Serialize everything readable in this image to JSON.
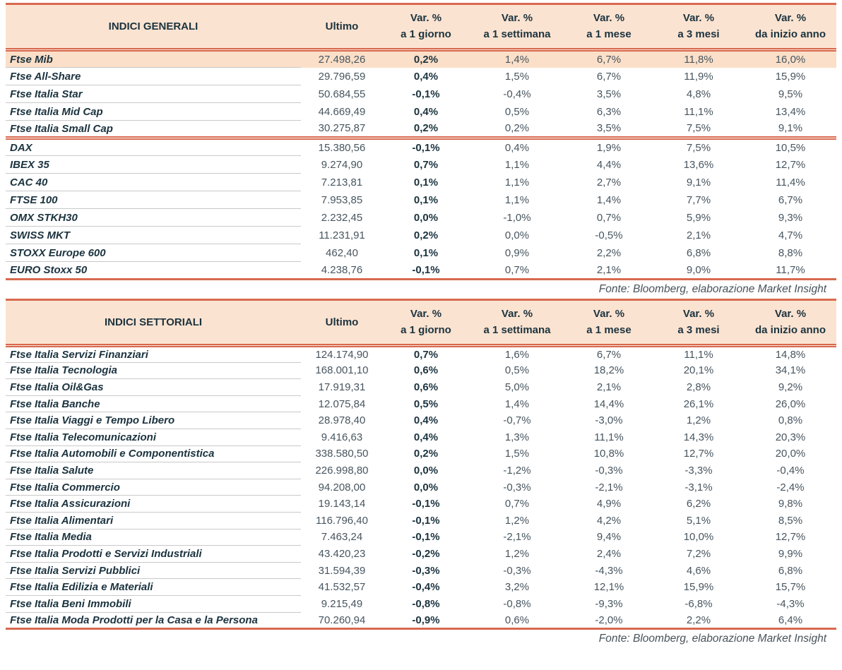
{
  "colors": {
    "accent-line": "#d7694f",
    "header-bg": "#fbe3d1",
    "highlight-bg": "#fbdfc8",
    "ink": "#1b333f",
    "num": "#47555f",
    "separator": "#c9c9c9",
    "fonte": "#47525a"
  },
  "tables": [
    {
      "title": "INDICI GENERALI",
      "ultimo_label": "Ultimo",
      "var_cols": [
        {
          "top": "Var. %",
          "bottom": "a 1 giorno"
        },
        {
          "top": "Var. %",
          "bottom": "a 1 settimana"
        },
        {
          "top": "Var. %",
          "bottom": "a 1 mese"
        },
        {
          "top": "Var. %",
          "bottom": "a 3 mesi"
        },
        {
          "top": "Var. %",
          "bottom": "da inizio anno"
        }
      ],
      "groups": [
        [
          {
            "name": "Ftse Mib",
            "ultimo": "27.498,26",
            "d1": "0,2%",
            "w1": "1,4%",
            "m1": "6,7%",
            "m3": "11,8%",
            "ytd": "16,0%",
            "highlight": true
          },
          {
            "name": "Ftse All-Share",
            "ultimo": "29.796,59",
            "d1": "0,4%",
            "w1": "1,5%",
            "m1": "6,7%",
            "m3": "11,9%",
            "ytd": "15,9%"
          },
          {
            "name": "Ftse Italia Star",
            "ultimo": "50.684,55",
            "d1": "-0,1%",
            "w1": "-0,4%",
            "m1": "3,5%",
            "m3": "4,8%",
            "ytd": "9,5%"
          },
          {
            "name": "Ftse Italia Mid Cap",
            "ultimo": "44.669,49",
            "d1": "0,4%",
            "w1": "0,5%",
            "m1": "6,3%",
            "m3": "11,1%",
            "ytd": "13,4%"
          },
          {
            "name": "Ftse Italia Small Cap",
            "ultimo": "30.275,87",
            "d1": "0,2%",
            "w1": "0,2%",
            "m1": "3,5%",
            "m3": "7,5%",
            "ytd": "9,1%"
          }
        ],
        [
          {
            "name": "DAX",
            "ultimo": "15.380,56",
            "d1": "-0,1%",
            "w1": "0,4%",
            "m1": "1,9%",
            "m3": "7,5%",
            "ytd": "10,5%"
          },
          {
            "name": "IBEX 35",
            "ultimo": "9.274,90",
            "d1": "0,7%",
            "w1": "1,1%",
            "m1": "4,4%",
            "m3": "13,6%",
            "ytd": "12,7%"
          },
          {
            "name": "CAC 40",
            "ultimo": "7.213,81",
            "d1": "0,1%",
            "w1": "1,1%",
            "m1": "2,7%",
            "m3": "9,1%",
            "ytd": "11,4%"
          },
          {
            "name": "FTSE 100",
            "ultimo": "7.953,85",
            "d1": "0,1%",
            "w1": "1,1%",
            "m1": "1,4%",
            "m3": "7,7%",
            "ytd": "6,7%"
          },
          {
            "name": "OMX STKH30",
            "ultimo": "2.232,45",
            "d1": "0,0%",
            "w1": "-1,0%",
            "m1": "0,7%",
            "m3": "5,9%",
            "ytd": "9,3%"
          },
          {
            "name": "SWISS MKT",
            "ultimo": "11.231,91",
            "d1": "0,2%",
            "w1": "0,0%",
            "m1": "-0,5%",
            "m3": "2,1%",
            "ytd": "4,7%"
          },
          {
            "name": "STOXX Europe 600",
            "ultimo": "462,40",
            "d1": "0,1%",
            "w1": "0,9%",
            "m1": "2,2%",
            "m3": "6,8%",
            "ytd": "8,8%"
          },
          {
            "name": "EURO Stoxx 50",
            "ultimo": "4.238,76",
            "d1": "-0,1%",
            "w1": "0,7%",
            "m1": "2,1%",
            "m3": "9,0%",
            "ytd": "11,7%"
          }
        ]
      ],
      "fonte": "Fonte: Bloomberg, elaborazione Market Insight"
    },
    {
      "title": "INDICI SETTORIALI",
      "ultimo_label": "Ultimo",
      "var_cols": [
        {
          "top": "Var. %",
          "bottom": "a 1 giorno"
        },
        {
          "top": "Var. %",
          "bottom": "a 1 settimana"
        },
        {
          "top": "Var. %",
          "bottom": "a 1 mese"
        },
        {
          "top": "Var. %",
          "bottom": "a 3 mesi"
        },
        {
          "top": "Var. %",
          "bottom": "da inizio anno"
        }
      ],
      "groups": [
        [
          {
            "name": "Ftse Italia Servizi Finanziari",
            "ultimo": "124.174,90",
            "d1": "0,7%",
            "w1": "1,6%",
            "m1": "6,7%",
            "m3": "11,1%",
            "ytd": "14,8%"
          },
          {
            "name": "Ftse Italia Tecnologia",
            "ultimo": "168.001,10",
            "d1": "0,6%",
            "w1": "0,5%",
            "m1": "18,2%",
            "m3": "20,1%",
            "ytd": "34,1%"
          },
          {
            "name": "Ftse Italia Oil&Gas",
            "ultimo": "17.919,31",
            "d1": "0,6%",
            "w1": "5,0%",
            "m1": "2,1%",
            "m3": "2,8%",
            "ytd": "9,2%"
          },
          {
            "name": "Ftse Italia Banche",
            "ultimo": "12.075,84",
            "d1": "0,5%",
            "w1": "1,4%",
            "m1": "14,4%",
            "m3": "26,1%",
            "ytd": "26,0%"
          },
          {
            "name": "Ftse Italia Viaggi e Tempo Libero",
            "ultimo": "28.978,40",
            "d1": "0,4%",
            "w1": "-0,7%",
            "m1": "-3,0%",
            "m3": "1,2%",
            "ytd": "0,8%"
          },
          {
            "name": "Ftse Italia Telecomunicazioni",
            "ultimo": "9.416,63",
            "d1": "0,4%",
            "w1": "1,3%",
            "m1": "11,1%",
            "m3": "14,3%",
            "ytd": "20,3%"
          },
          {
            "name": "Ftse Italia Automobili e Componentistica",
            "ultimo": "338.580,50",
            "d1": "0,2%",
            "w1": "1,5%",
            "m1": "10,8%",
            "m3": "12,7%",
            "ytd": "20,0%"
          },
          {
            "name": "Ftse Italia Salute",
            "ultimo": "226.998,80",
            "d1": "0,0%",
            "w1": "-1,2%",
            "m1": "-0,3%",
            "m3": "-3,3%",
            "ytd": "-0,4%"
          },
          {
            "name": "Ftse Italia Commercio",
            "ultimo": "94.208,00",
            "d1": "0,0%",
            "w1": "-0,3%",
            "m1": "-2,1%",
            "m3": "-3,1%",
            "ytd": "-2,4%"
          },
          {
            "name": "Ftse Italia Assicurazioni",
            "ultimo": "19.143,14",
            "d1": "-0,1%",
            "w1": "0,7%",
            "m1": "4,9%",
            "m3": "6,2%",
            "ytd": "9,8%"
          },
          {
            "name": "Ftse Italia Alimentari",
            "ultimo": "116.796,40",
            "d1": "-0,1%",
            "w1": "1,2%",
            "m1": "4,2%",
            "m3": "5,1%",
            "ytd": "8,5%"
          },
          {
            "name": "Ftse Italia Media",
            "ultimo": "7.463,24",
            "d1": "-0,1%",
            "w1": "-2,1%",
            "m1": "9,4%",
            "m3": "10,0%",
            "ytd": "12,7%"
          },
          {
            "name": "Ftse Italia Prodotti e Servizi Industriali",
            "ultimo": "43.420,23",
            "d1": "-0,2%",
            "w1": "1,2%",
            "m1": "2,4%",
            "m3": "7,2%",
            "ytd": "9,9%"
          },
          {
            "name": "Ftse Italia Servizi Pubblici",
            "ultimo": "31.594,39",
            "d1": "-0,3%",
            "w1": "-0,3%",
            "m1": "-4,3%",
            "m3": "4,6%",
            "ytd": "6,8%"
          },
          {
            "name": "Ftse Italia Edilizia e Materiali",
            "ultimo": "41.532,57",
            "d1": "-0,4%",
            "w1": "3,2%",
            "m1": "12,1%",
            "m3": "15,9%",
            "ytd": "15,7%"
          },
          {
            "name": "Ftse Italia Beni Immobili",
            "ultimo": "9.215,49",
            "d1": "-0,8%",
            "w1": "-0,8%",
            "m1": "-9,3%",
            "m3": "-6,8%",
            "ytd": "-4,3%"
          },
          {
            "name": "Ftse Italia Moda Prodotti per la Casa e la Persona",
            "ultimo": "70.260,94",
            "d1": "-0,9%",
            "w1": "0,6%",
            "m1": "-2,0%",
            "m3": "2,2%",
            "ytd": "6,4%"
          }
        ]
      ],
      "fonte": "Fonte: Bloomberg, elaborazione Market Insight"
    }
  ]
}
